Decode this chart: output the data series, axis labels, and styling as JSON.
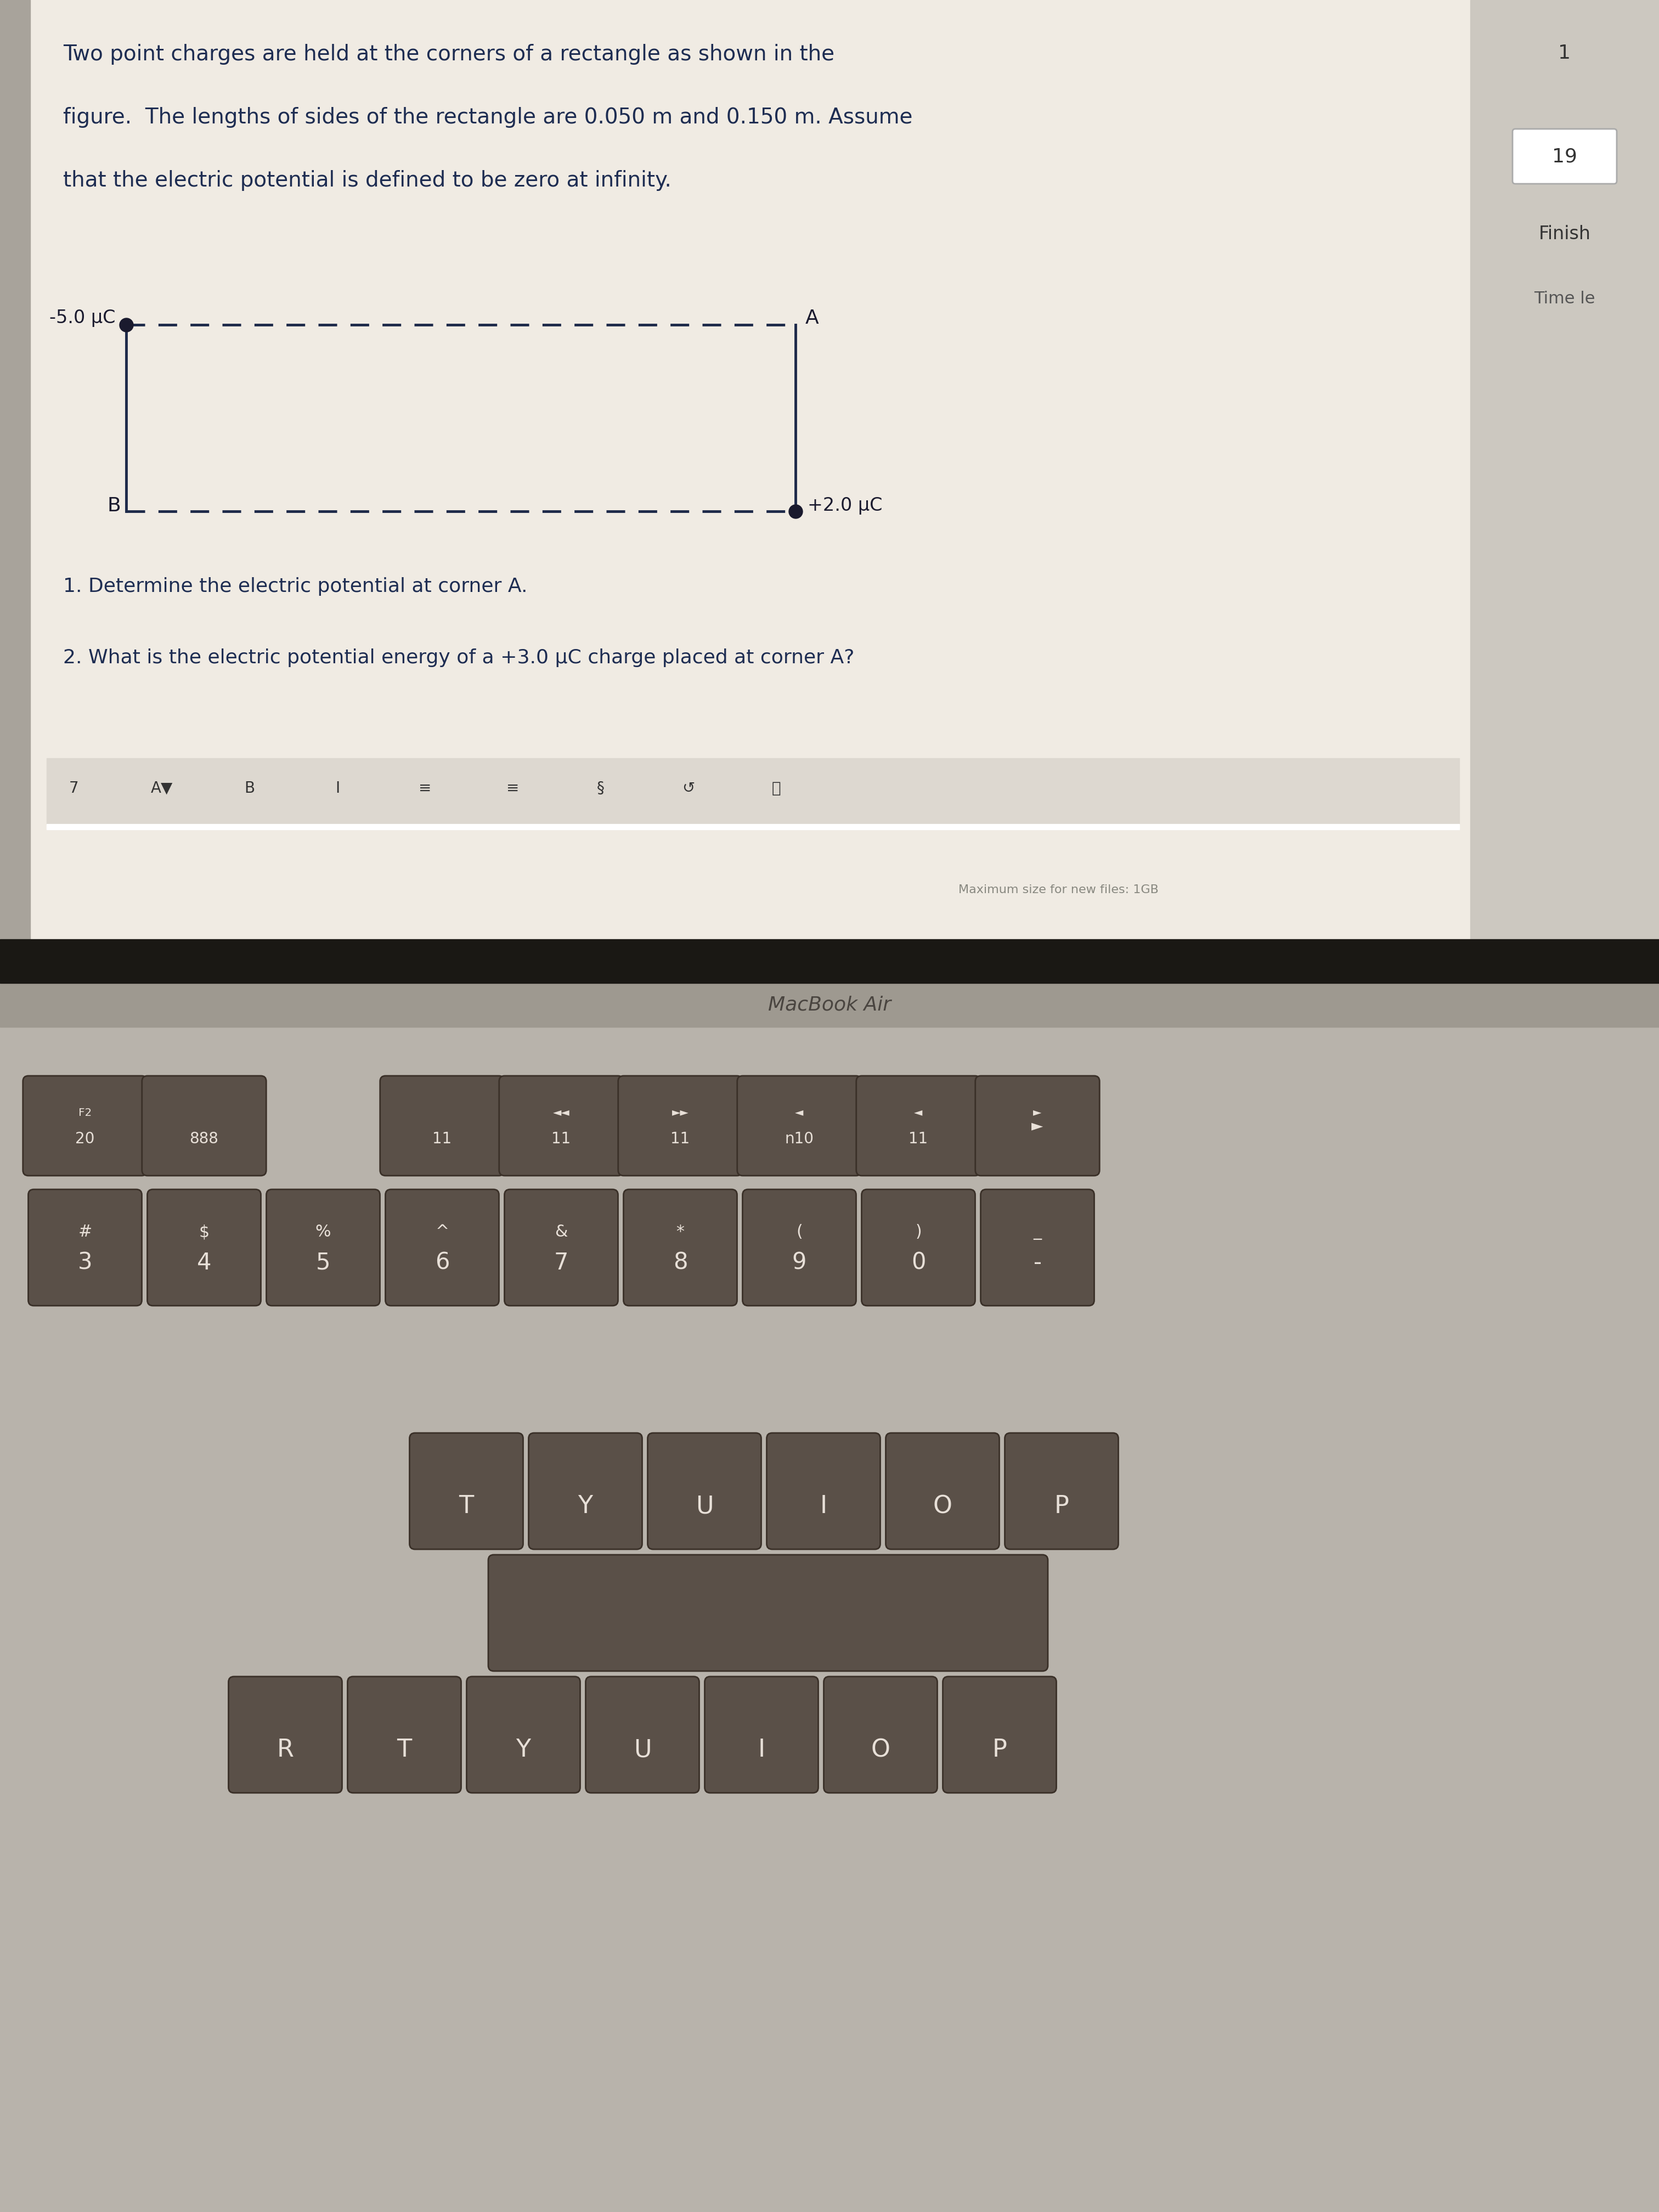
{
  "bg_outer": "#c8c3bb",
  "screen_bg": "#e8e3db",
  "content_bg": "#f0ebe3",
  "right_panel_bg": "#ccc8c0",
  "keyboard_bg": "#b8b3ab",
  "bezel_color": "#1a1814",
  "macbook_bar_color": "#9e9990",
  "title_text_line1": "Two point charges are held at the corners of a rectangle as shown in the",
  "title_text_line2": "figure.  The lengths of sides of the rectangle are 0.050 m and 0.150 m. Assume",
  "title_text_line3": "that the electric potential is defined to be zero at infinity.",
  "title_color": "#1e2d52",
  "title_fontsize": 28,
  "charge_neg_label": "-5.0 μC",
  "charge_pos_label": "+2.0 μC",
  "corner_A_label": "A",
  "corner_B_label": "B",
  "q1_text": "1. Determine the electric potential at corner A.",
  "q2_text": "2. What is the electric potential energy of a +3.0 μC charge placed at corner A?",
  "question_color": "#1e2d52",
  "question_fontsize": 26,
  "dashed_color": "#1e2a4a",
  "solid_color": "#1e2a4a",
  "charge_color": "#1a1a2e",
  "right_panel_num1": "1",
  "right_panel_num2": "19",
  "right_panel_finish": "Finish",
  "right_panel_time": "Time le",
  "macbook_label": "MacBook Air",
  "max_size_text": "Maximum size for new files: 1GB",
  "toolbar_items": [
    "7",
    "A▼",
    "B",
    "I",
    "≡",
    "≡",
    "§",
    "↺",
    "⎙"
  ],
  "key_color": "#7a6e65",
  "key_label_color": "#ffffff",
  "key_bg": "#6e635a"
}
